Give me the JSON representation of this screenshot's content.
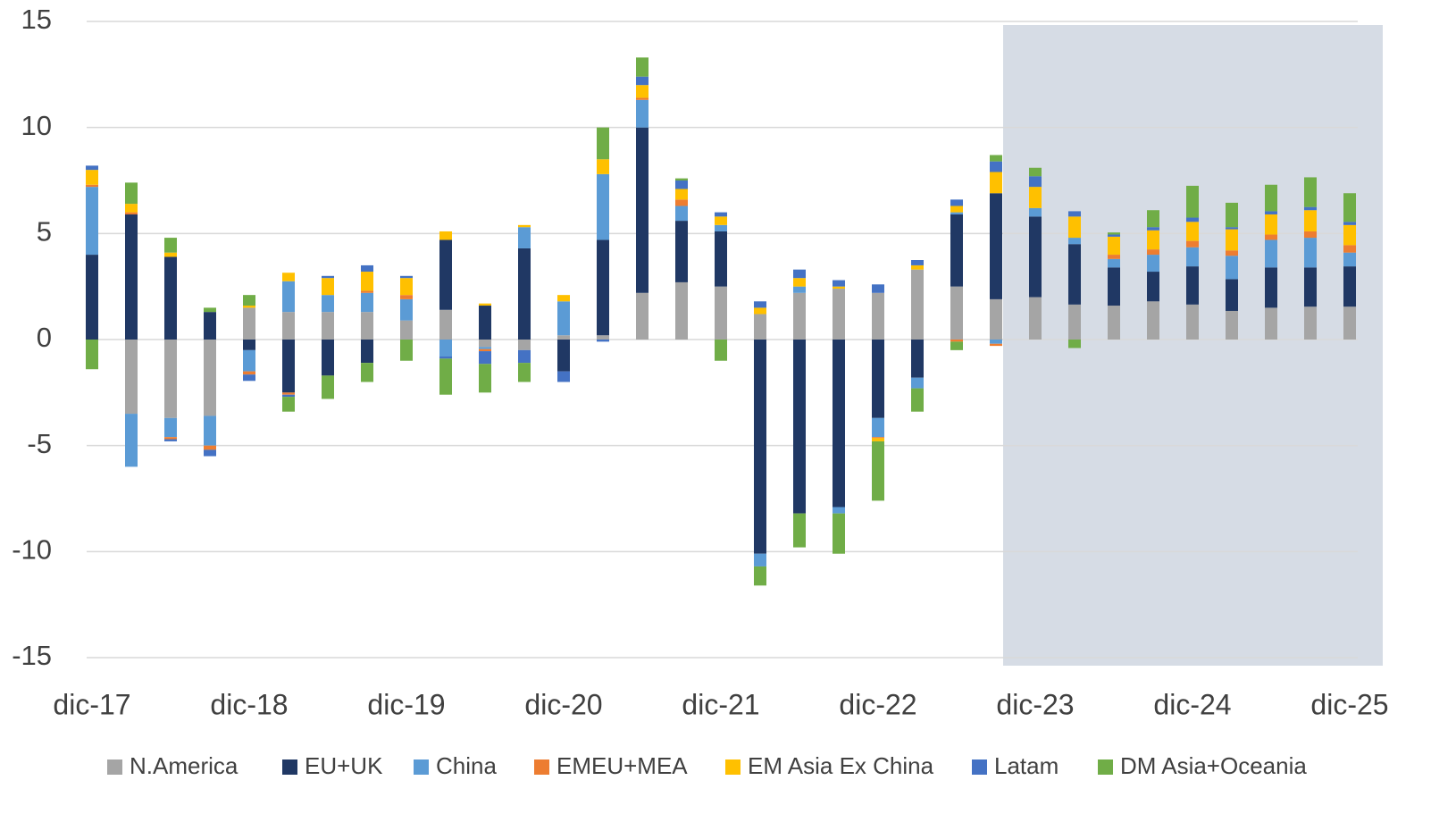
{
  "chart_data": {
    "type": "stacked_bar",
    "categories": [
      "dic-17",
      null,
      null,
      null,
      "dic-18",
      null,
      null,
      null,
      "dic-19",
      null,
      null,
      null,
      "dic-20",
      null,
      null,
      null,
      "dic-21",
      null,
      null,
      null,
      "dic-22",
      null,
      null,
      null,
      "dic-23",
      null,
      null,
      null,
      "dic-24",
      null,
      null,
      null,
      "dic-25"
    ],
    "series": [
      {
        "name": "N.America",
        "color": "#a5a5a5",
        "values": [
          0,
          -3.5,
          -3.7,
          -3.6,
          1.5,
          1.3,
          1.3,
          1.3,
          0.9,
          1.4,
          -0.35,
          -0.5,
          0.2,
          0.2,
          2.2,
          2.7,
          2.5,
          1.2,
          2.2,
          2.4,
          2.2,
          3.3,
          2.5,
          1.9,
          2.0,
          1.65,
          1.6,
          1.8,
          1.65,
          1.35,
          1.5,
          1.55,
          1.55
        ]
      },
      {
        "name": "EU+UK",
        "color": "#203864",
        "values": [
          4.0,
          5.9,
          3.9,
          1.3,
          -0.5,
          -2.5,
          -1.7,
          -1.1,
          0,
          3.3,
          1.6,
          4.3,
          -1.5,
          4.5,
          7.8,
          2.9,
          2.6,
          -10.1,
          -8.2,
          -7.9,
          -3.7,
          -1.8,
          3.4,
          5.0,
          3.8,
          2.85,
          1.8,
          1.4,
          1.8,
          1.5,
          1.9,
          1.85,
          1.9
        ]
      },
      {
        "name": "China",
        "color": "#5b9bd5",
        "values": [
          3.2,
          -2.5,
          -0.9,
          -1.4,
          -1.0,
          1.45,
          0.8,
          0.9,
          1.0,
          -0.8,
          -0.1,
          1.0,
          1.6,
          3.1,
          1.3,
          0.7,
          0.3,
          -0.6,
          0.3,
          -0.3,
          -0.9,
          -0.5,
          0.1,
          -0.2,
          0.4,
          0.3,
          0.4,
          0.8,
          0.9,
          1.1,
          1.3,
          1.4,
          0.65
        ]
      },
      {
        "name": "EMEU+MEA",
        "color": "#ed7d31",
        "values": [
          0.1,
          0.1,
          -0.1,
          -0.2,
          -0.15,
          -0.1,
          0,
          0.1,
          0.2,
          0,
          -0.1,
          0,
          0,
          0,
          0.1,
          0.3,
          0,
          0,
          0,
          0,
          -0.05,
          0,
          -0.1,
          -0.1,
          0,
          0,
          0.2,
          0.25,
          0.3,
          0.25,
          0.25,
          0.3,
          0.35
        ]
      },
      {
        "name": "EM Asia Ex China",
        "color": "#ffc000",
        "values": [
          0.7,
          0.4,
          0.2,
          0,
          0.1,
          0.4,
          0.8,
          0.9,
          0.8,
          0.4,
          0.1,
          0.1,
          0.3,
          0.7,
          0.6,
          0.5,
          0.4,
          0.3,
          0.4,
          0.1,
          -0.15,
          0.2,
          0.3,
          1.0,
          1.0,
          1.0,
          0.85,
          0.9,
          0.9,
          1.0,
          0.95,
          1.0,
          0.95
        ]
      },
      {
        "name": "Latam",
        "color": "#4472c4",
        "values": [
          0.2,
          0,
          -0.1,
          -0.3,
          -0.3,
          -0.1,
          0.1,
          0.3,
          0.1,
          -0.1,
          -0.6,
          -0.6,
          -0.5,
          -0.1,
          0.4,
          0.4,
          0.2,
          0.3,
          0.4,
          0.3,
          0.4,
          0.25,
          0.3,
          0.5,
          0.5,
          0.25,
          0.1,
          0.15,
          0.2,
          0.1,
          0.15,
          0.15,
          0.15
        ]
      },
      {
        "name": "DM Asia+Oceania",
        "color": "#70ad47",
        "values": [
          -1.4,
          1.0,
          0.7,
          0.2,
          0.5,
          -0.7,
          -1.1,
          -0.9,
          -1.0,
          -1.7,
          -1.35,
          -0.9,
          0,
          1.5,
          0.9,
          0.1,
          -1.0,
          -0.9,
          -1.6,
          -1.9,
          -2.8,
          -1.1,
          -0.4,
          0.3,
          0.4,
          -0.4,
          0.1,
          0.8,
          1.5,
          1.15,
          1.25,
          1.4,
          1.35
        ]
      }
    ],
    "ylim": [
      -15,
      15
    ],
    "yticks": [
      -15,
      -10,
      -5,
      0,
      5,
      10,
      15
    ],
    "grid": true
  }
}
